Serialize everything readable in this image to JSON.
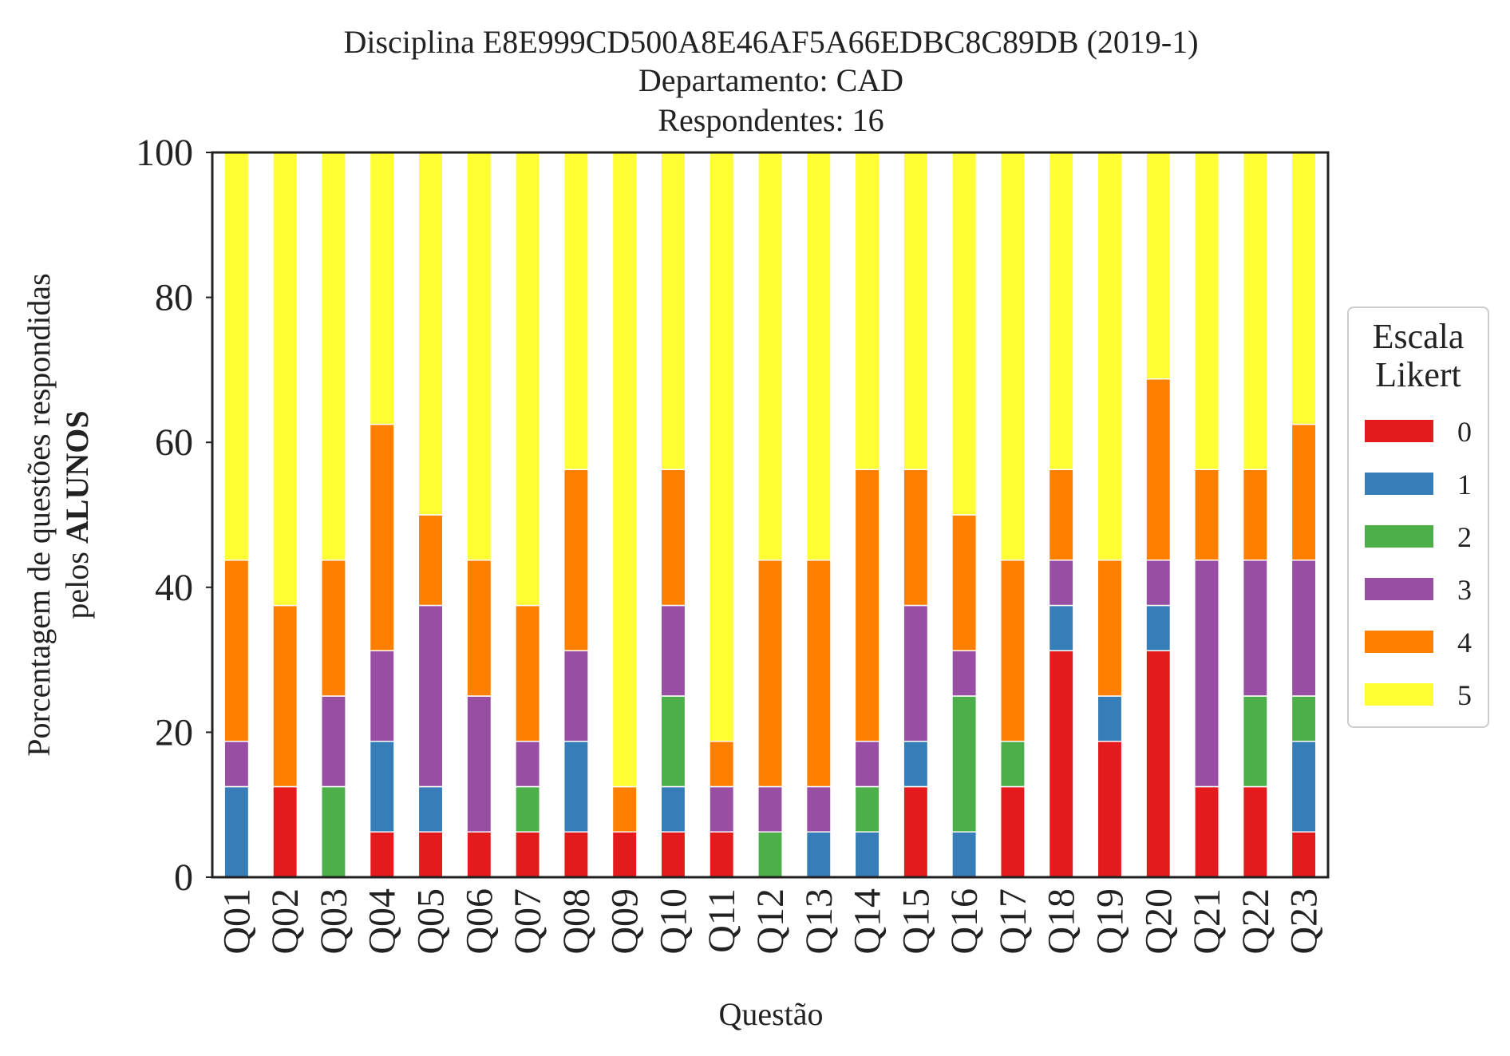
{
  "chart_data": {
    "type": "bar",
    "stacked": true,
    "title": "Disciplina E8E999CD500A8E46AF5A66EDBC8C89DB (2019-1)",
    "subtitle_1": "Departamento: CAD",
    "subtitle_2": "Respondentes: 16",
    "xlabel": "Questão",
    "ylabel_line1": "Porcentagem de questões respondidas",
    "ylabel_line2_prefix": "pelos ",
    "ylabel_line2_bold": "ALUNOS",
    "ylim": [
      0,
      100
    ],
    "yticks": [
      0,
      20,
      40,
      60,
      80,
      100
    ],
    "grid": false,
    "legend_title_1": "Escala",
    "legend_title_2": "Likert",
    "legend_placement": "right",
    "categories": [
      "Q01",
      "Q02",
      "Q03",
      "Q04",
      "Q05",
      "Q06",
      "Q07",
      "Q08",
      "Q09",
      "Q10",
      "Q11",
      "Q12",
      "Q13",
      "Q14",
      "Q15",
      "Q16",
      "Q17",
      "Q18",
      "Q19",
      "Q20",
      "Q21",
      "Q22",
      "Q23"
    ],
    "series": [
      {
        "name": "0",
        "color": "#e41a1c",
        "values": [
          0,
          12.5,
          0,
          6.25,
          6.25,
          6.25,
          6.25,
          6.25,
          6.25,
          6.25,
          6.25,
          0,
          0,
          0,
          12.5,
          0,
          12.5,
          31.25,
          18.75,
          31.25,
          12.5,
          12.5,
          6.25
        ]
      },
      {
        "name": "1",
        "color": "#377eb8",
        "values": [
          12.5,
          0,
          0,
          12.5,
          6.25,
          0,
          0,
          12.5,
          0,
          6.25,
          0,
          0,
          6.25,
          6.25,
          6.25,
          6.25,
          0,
          6.25,
          6.25,
          6.25,
          0,
          0,
          12.5
        ]
      },
      {
        "name": "2",
        "color": "#4daf4a",
        "values": [
          0,
          0,
          12.5,
          0,
          0,
          0,
          6.25,
          0,
          0,
          12.5,
          0,
          6.25,
          0,
          6.25,
          0,
          18.75,
          6.25,
          0,
          0,
          0,
          0,
          12.5,
          6.25
        ]
      },
      {
        "name": "3",
        "color": "#984ea3",
        "values": [
          6.25,
          0,
          12.5,
          12.5,
          25,
          18.75,
          6.25,
          12.5,
          0,
          12.5,
          6.25,
          6.25,
          6.25,
          6.25,
          18.75,
          6.25,
          0,
          6.25,
          0,
          6.25,
          31.25,
          18.75,
          18.75
        ]
      },
      {
        "name": "4",
        "color": "#ff7f00",
        "values": [
          25,
          25,
          18.75,
          31.25,
          12.5,
          18.75,
          18.75,
          25,
          6.25,
          18.75,
          6.25,
          31.25,
          31.25,
          37.5,
          18.75,
          18.75,
          25,
          12.5,
          18.75,
          25,
          12.5,
          12.5,
          18.75
        ]
      },
      {
        "name": "5",
        "color": "#ffff33",
        "values": [
          56.25,
          62.5,
          56.25,
          37.5,
          50,
          56.25,
          62.5,
          43.75,
          87.5,
          43.75,
          81.25,
          56.25,
          56.25,
          43.75,
          43.75,
          50,
          56.25,
          43.75,
          56.25,
          31.25,
          43.75,
          43.75,
          37.5
        ]
      }
    ]
  }
}
